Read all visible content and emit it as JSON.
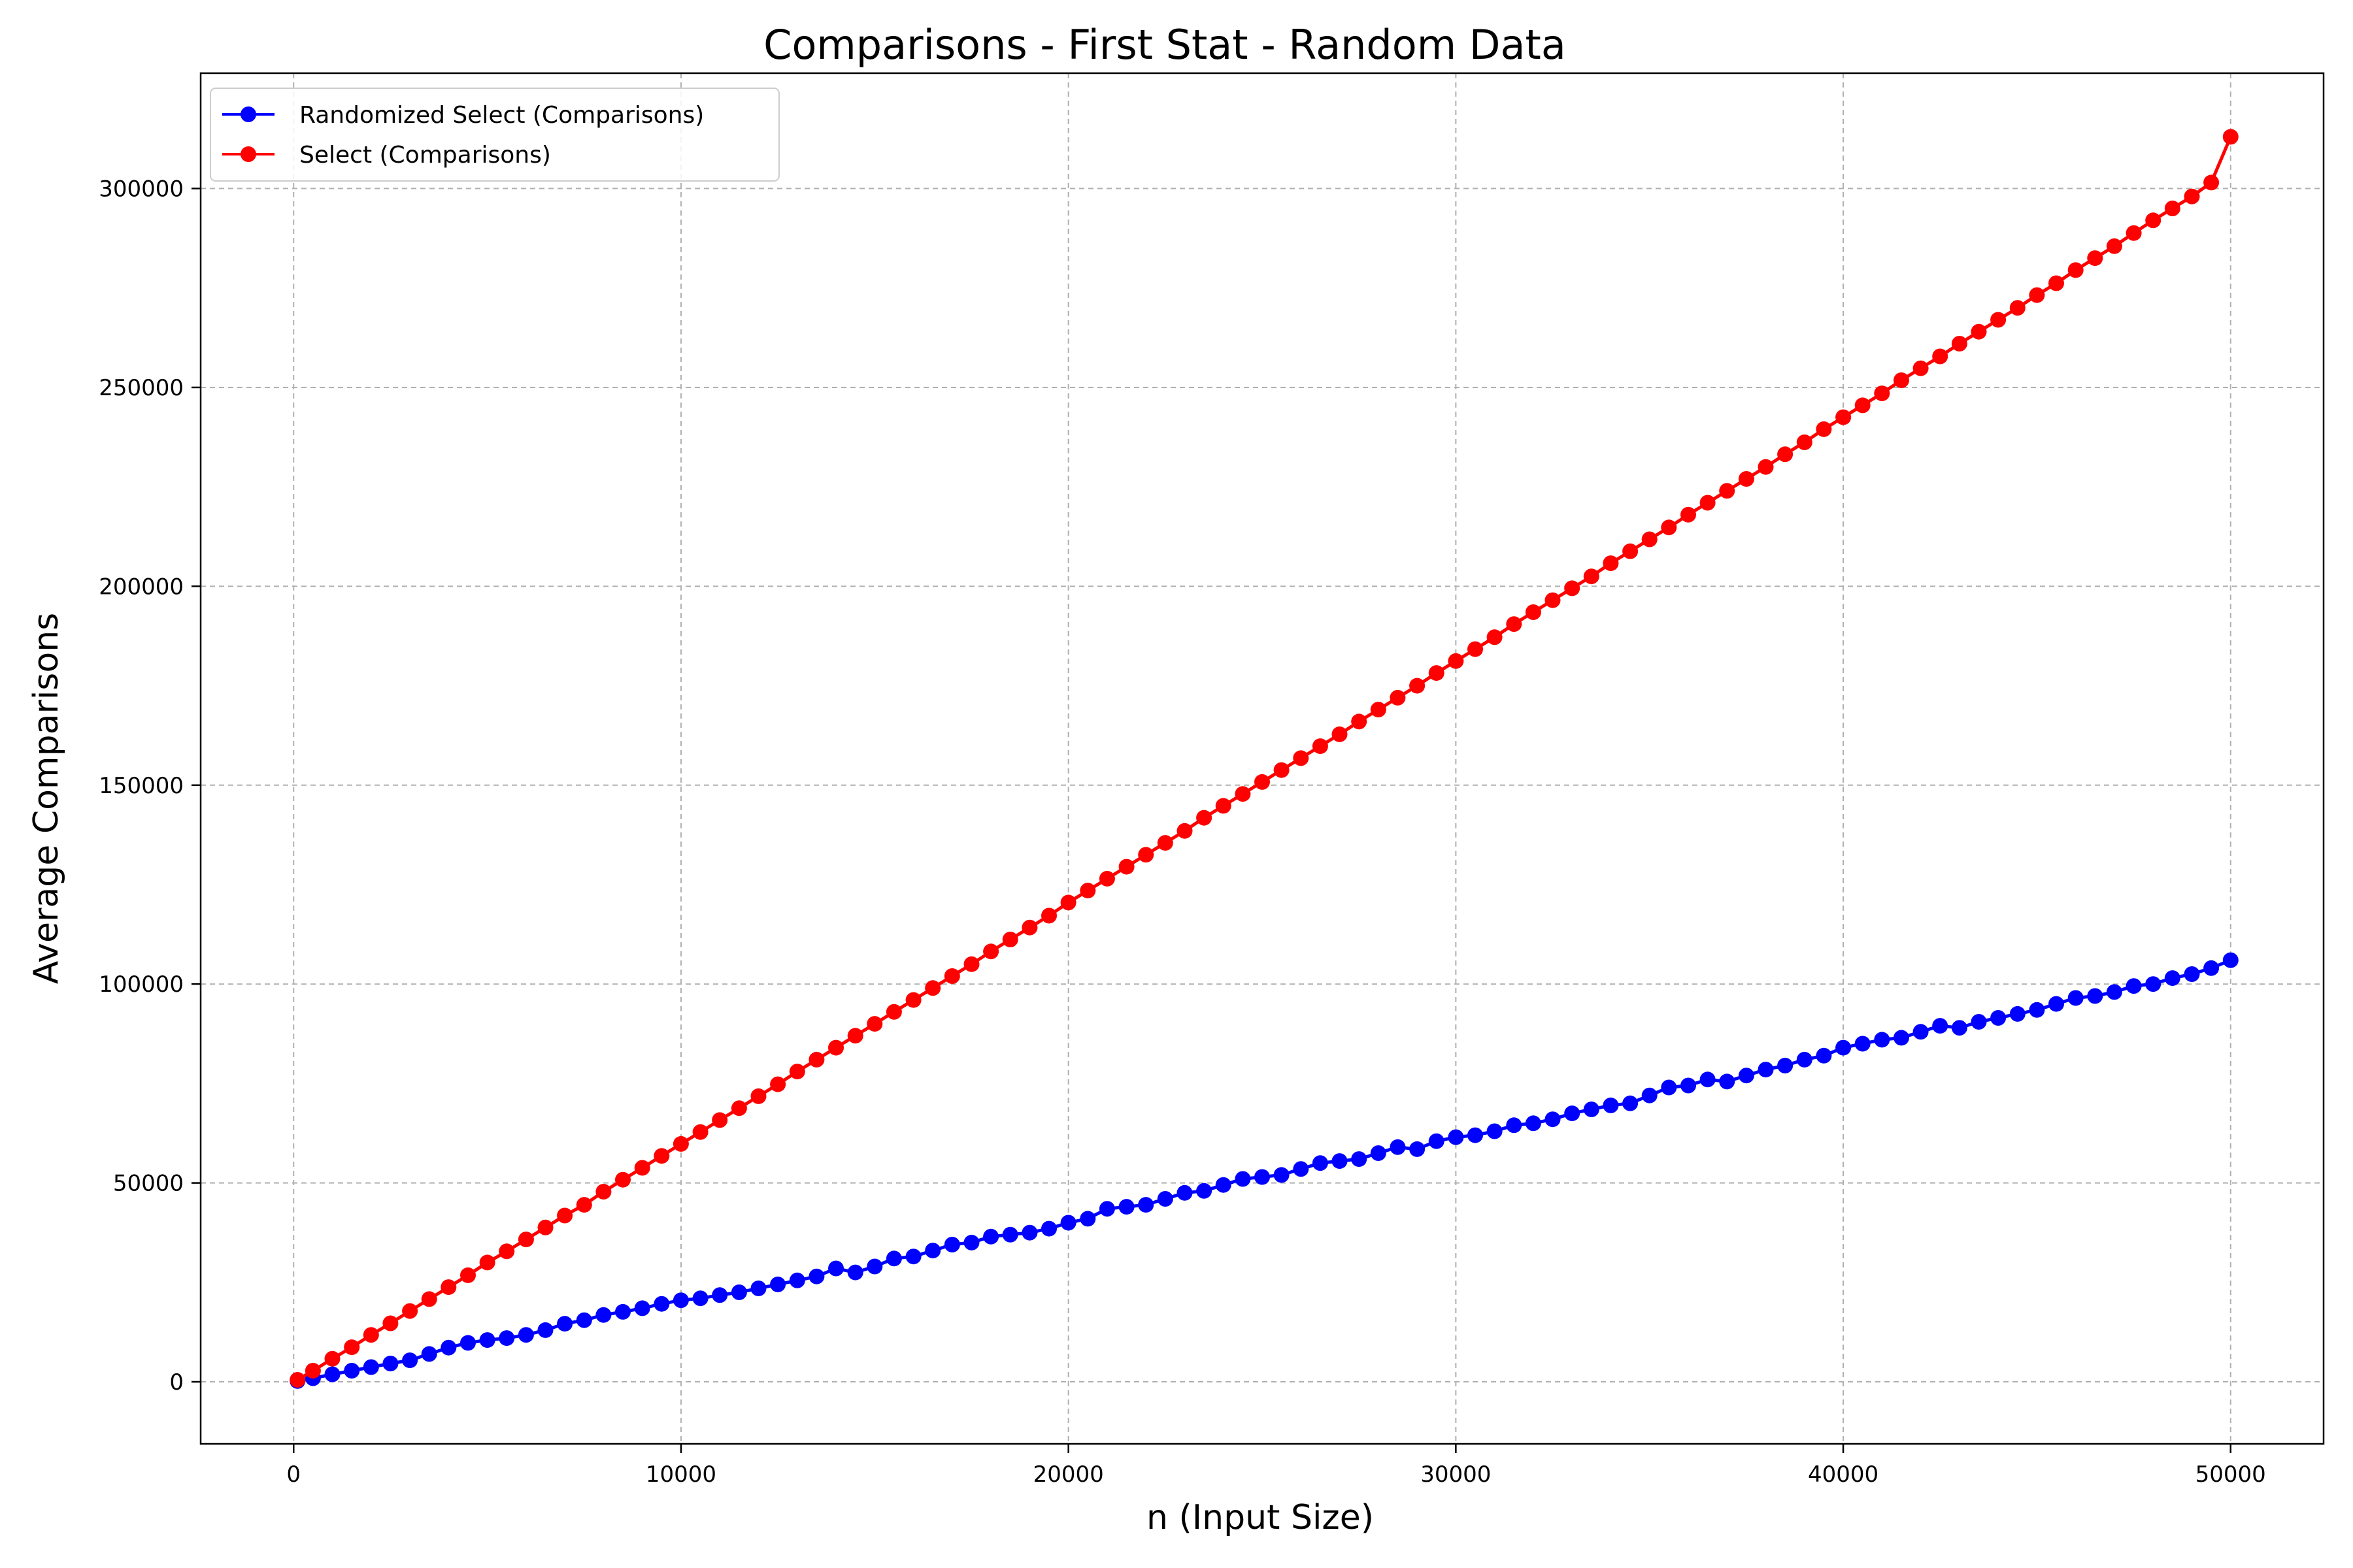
{
  "chart_data": {
    "type": "line",
    "title": "Comparisons - First Stat - Random Data",
    "xlabel": "n (Input Size)",
    "ylabel": "Average Comparisons",
    "xlim": [
      -2400,
      52400
    ],
    "ylim": [
      -15600,
      329000
    ],
    "xticks": [
      0,
      10000,
      20000,
      30000,
      40000,
      50000
    ],
    "yticks": [
      0,
      50000,
      100000,
      150000,
      200000,
      250000,
      300000
    ],
    "grid": true,
    "legend_position": "top-left",
    "series": [
      {
        "name": "Randomized Select (Comparisons)",
        "color": "#0000ff",
        "points": [
          [
            100,
            200
          ],
          [
            500,
            900
          ],
          [
            1000,
            1900
          ],
          [
            1500,
            2800
          ],
          [
            2000,
            3700
          ],
          [
            2500,
            4600
          ],
          [
            3000,
            5400
          ],
          [
            3500,
            7000
          ],
          [
            4000,
            8600
          ],
          [
            4500,
            9800
          ],
          [
            5000,
            10500
          ],
          [
            5500,
            11000
          ],
          [
            6000,
            11800
          ],
          [
            6500,
            13000
          ],
          [
            7000,
            14600
          ],
          [
            7500,
            15500
          ],
          [
            8000,
            16800
          ],
          [
            8500,
            17600
          ],
          [
            9000,
            18500
          ],
          [
            9500,
            19600
          ],
          [
            10000,
            20500
          ],
          [
            10500,
            21000
          ],
          [
            11000,
            21800
          ],
          [
            11500,
            22500
          ],
          [
            12000,
            23500
          ],
          [
            12500,
            24500
          ],
          [
            13000,
            25500
          ],
          [
            13500,
            26500
          ],
          [
            14000,
            28500
          ],
          [
            14500,
            27500
          ],
          [
            15000,
            29000
          ],
          [
            15500,
            31000
          ],
          [
            16000,
            31500
          ],
          [
            16500,
            33000
          ],
          [
            17000,
            34500
          ],
          [
            17500,
            35000
          ],
          [
            18000,
            36500
          ],
          [
            18500,
            37000
          ],
          [
            19000,
            37500
          ],
          [
            19500,
            38500
          ],
          [
            20000,
            40000
          ],
          [
            20500,
            41000
          ],
          [
            21000,
            43500
          ],
          [
            21500,
            44000
          ],
          [
            22000,
            44500
          ],
          [
            22500,
            46000
          ],
          [
            23000,
            47500
          ],
          [
            23500,
            48000
          ],
          [
            24000,
            49500
          ],
          [
            24500,
            51000
          ],
          [
            25000,
            51500
          ],
          [
            25500,
            52000
          ],
          [
            26000,
            53500
          ],
          [
            26500,
            55000
          ],
          [
            27000,
            55500
          ],
          [
            27500,
            56000
          ],
          [
            28000,
            57500
          ],
          [
            28500,
            59000
          ],
          [
            29000,
            58500
          ],
          [
            29500,
            60500
          ],
          [
            30000,
            61500
          ],
          [
            30500,
            62000
          ],
          [
            31000,
            63000
          ],
          [
            31500,
            64500
          ],
          [
            32000,
            65000
          ],
          [
            32500,
            66000
          ],
          [
            33000,
            67500
          ],
          [
            33500,
            68500
          ],
          [
            34000,
            69500
          ],
          [
            34500,
            70000
          ],
          [
            35000,
            72000
          ],
          [
            35500,
            74000
          ],
          [
            36000,
            74500
          ],
          [
            36500,
            76000
          ],
          [
            37000,
            75500
          ],
          [
            37500,
            77000
          ],
          [
            38000,
            78500
          ],
          [
            38500,
            79500
          ],
          [
            39000,
            81000
          ],
          [
            39500,
            82000
          ],
          [
            40000,
            84000
          ],
          [
            40500,
            85000
          ],
          [
            41000,
            86000
          ],
          [
            41500,
            86500
          ],
          [
            42000,
            88000
          ],
          [
            42500,
            89500
          ],
          [
            43000,
            89000
          ],
          [
            43500,
            90500
          ],
          [
            44000,
            91500
          ],
          [
            44500,
            92500
          ],
          [
            45000,
            93500
          ],
          [
            45500,
            95000
          ],
          [
            46000,
            96500
          ],
          [
            46500,
            97000
          ],
          [
            47000,
            98000
          ],
          [
            47500,
            99500
          ],
          [
            48000,
            100000
          ],
          [
            48500,
            101500
          ],
          [
            49000,
            102500
          ],
          [
            49500,
            104000
          ],
          [
            50000,
            106000
          ]
        ]
      },
      {
        "name": "Select (Comparisons)",
        "color": "#ff0000",
        "points": [
          [
            100,
            500
          ],
          [
            500,
            2800
          ],
          [
            1000,
            5800
          ],
          [
            1500,
            8700
          ],
          [
            2000,
            11800
          ],
          [
            2500,
            14700
          ],
          [
            3000,
            17800
          ],
          [
            3500,
            20800
          ],
          [
            4000,
            23800
          ],
          [
            4500,
            26800
          ],
          [
            5000,
            30000
          ],
          [
            5500,
            32800
          ],
          [
            6000,
            35800
          ],
          [
            6500,
            38800
          ],
          [
            7000,
            41800
          ],
          [
            7500,
            44500
          ],
          [
            8000,
            47800
          ],
          [
            8500,
            50800
          ],
          [
            9000,
            53800
          ],
          [
            9500,
            56800
          ],
          [
            10000,
            59800
          ],
          [
            10500,
            62800
          ],
          [
            11000,
            65800
          ],
          [
            11500,
            68800
          ],
          [
            12000,
            71800
          ],
          [
            12500,
            74800
          ],
          [
            13000,
            78000
          ],
          [
            13500,
            81000
          ],
          [
            14000,
            84000
          ],
          [
            14500,
            87000
          ],
          [
            15000,
            90000
          ],
          [
            15500,
            93000
          ],
          [
            16000,
            96000
          ],
          [
            16500,
            99000
          ],
          [
            17000,
            102000
          ],
          [
            17500,
            105000
          ],
          [
            18000,
            108200
          ],
          [
            18500,
            111200
          ],
          [
            19000,
            114200
          ],
          [
            19500,
            117200
          ],
          [
            20000,
            120500
          ],
          [
            20500,
            123500
          ],
          [
            21000,
            126500
          ],
          [
            21500,
            129500
          ],
          [
            22000,
            132500
          ],
          [
            22500,
            135500
          ],
          [
            23000,
            138500
          ],
          [
            23500,
            141800
          ],
          [
            24000,
            144800
          ],
          [
            24500,
            147800
          ],
          [
            25000,
            150800
          ],
          [
            25500,
            153800
          ],
          [
            26000,
            156800
          ],
          [
            26500,
            159800
          ],
          [
            27000,
            162800
          ],
          [
            27500,
            166000
          ],
          [
            28000,
            169000
          ],
          [
            28500,
            172000
          ],
          [
            29000,
            175000
          ],
          [
            29500,
            178200
          ],
          [
            30000,
            181200
          ],
          [
            30500,
            184200
          ],
          [
            31000,
            187200
          ],
          [
            31500,
            190500
          ],
          [
            32000,
            193500
          ],
          [
            32500,
            196500
          ],
          [
            33000,
            199500
          ],
          [
            33500,
            202500
          ],
          [
            34000,
            205800
          ],
          [
            34500,
            208800
          ],
          [
            35000,
            211800
          ],
          [
            35500,
            214800
          ],
          [
            36000,
            218000
          ],
          [
            36500,
            221000
          ],
          [
            37000,
            224000
          ],
          [
            37500,
            227000
          ],
          [
            38000,
            230000
          ],
          [
            38500,
            233200
          ],
          [
            39000,
            236200
          ],
          [
            39500,
            239500
          ],
          [
            40000,
            242500
          ],
          [
            40500,
            245500
          ],
          [
            41000,
            248500
          ],
          [
            41500,
            251800
          ],
          [
            42000,
            254800
          ],
          [
            42500,
            257800
          ],
          [
            43000,
            261000
          ],
          [
            43500,
            264000
          ],
          [
            44000,
            267000
          ],
          [
            44500,
            270000
          ],
          [
            45000,
            273200
          ],
          [
            45500,
            276200
          ],
          [
            46000,
            279500
          ],
          [
            46500,
            282500
          ],
          [
            47000,
            285500
          ],
          [
            47500,
            288800
          ],
          [
            48000,
            292000
          ],
          [
            48500,
            295000
          ],
          [
            49000,
            298000
          ],
          [
            49500,
            301500
          ],
          [
            50000,
            313000
          ]
        ]
      }
    ]
  }
}
